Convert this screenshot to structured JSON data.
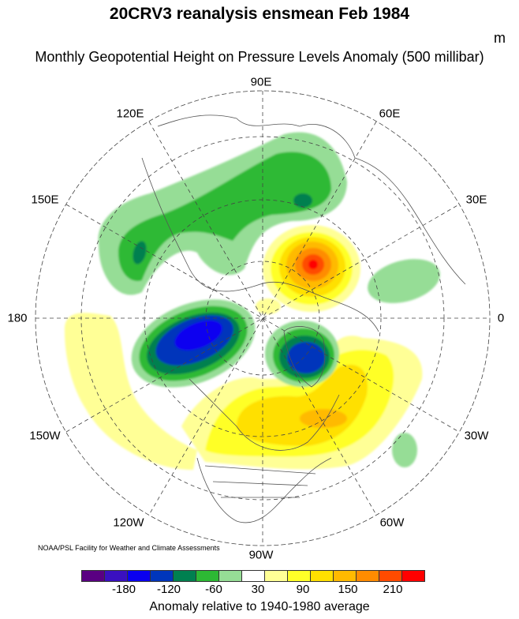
{
  "title": "20CRV3 reanalysis ensmean Feb 1984",
  "subtitle": "Monthly Geopotential Height on Pressure Levels Anomaly (500 millibar)",
  "units": "m",
  "longitude_labels": {
    "e90": "90E",
    "e60": "60E",
    "e30": "30E",
    "zero": "0",
    "w30": "30W",
    "w60": "60W",
    "w90": "90W",
    "w120": "120W",
    "w150": "150W",
    "d180": "180",
    "e150": "150E",
    "e120": "120E"
  },
  "credit": "NOAA/PSL Facility for Weather and Climate Assessments",
  "colorbar": {
    "colors": [
      "#5a0082",
      "#3a10c0",
      "#0a00f0",
      "#0036bb",
      "#008050",
      "#2db934",
      "#96dd96",
      "#ffffff",
      "#ffff96",
      "#ffff28",
      "#ffe000",
      "#ffba00",
      "#ff8c00",
      "#ff4b00",
      "#ff0000"
    ],
    "labels": [
      "-180",
      "-120",
      "-60",
      "30",
      "90",
      "150",
      "210"
    ],
    "title": "Anomaly relative to 1940-1980 average"
  }
}
